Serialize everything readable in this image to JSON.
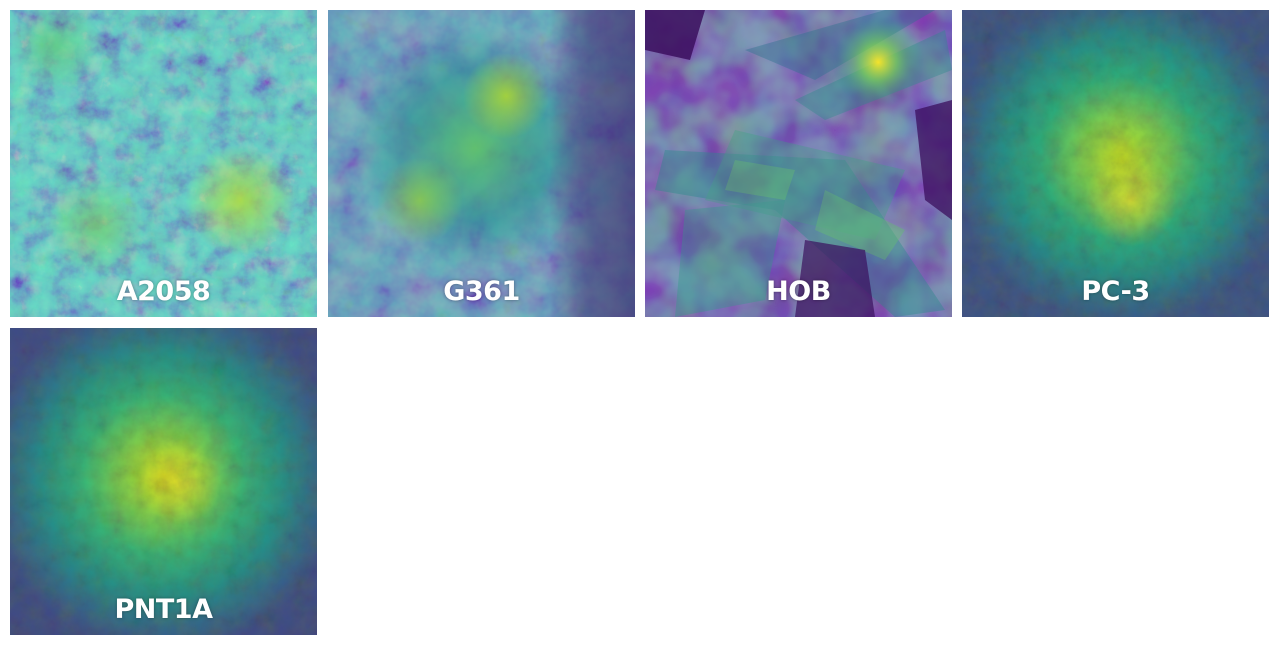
{
  "panels": [
    {
      "id": "a2058",
      "label": "A2058"
    },
    {
      "id": "g361",
      "label": "G361"
    },
    {
      "id": "hob",
      "label": "HOB"
    },
    {
      "id": "pc3",
      "label": "PC-3"
    },
    {
      "id": "pnt1a",
      "label": "PNT1A"
    }
  ],
  "colormap": "viridis",
  "colors": {
    "dark": "#440154",
    "deep_blue": "#3b528b",
    "teal": "#21918c",
    "green": "#5ec962",
    "yellow": "#fde725",
    "label_text": "#ffffff"
  }
}
